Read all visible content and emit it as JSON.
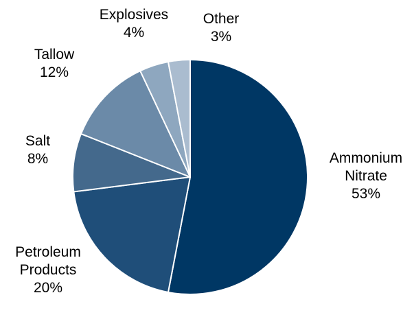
{
  "chart_data": {
    "type": "pie",
    "title": "",
    "start_angle_deg": 0,
    "direction": "clockwise",
    "slices": [
      {
        "name": "Ammonium Nitrate",
        "label_lines": [
          "Ammonium",
          "Nitrate"
        ],
        "value": 53,
        "value_label": "53%",
        "color": "#003764"
      },
      {
        "name": "Petroleum Products",
        "label_lines": [
          "Petroleum",
          "Products"
        ],
        "value": 20,
        "value_label": "20%",
        "color": "#1f4e79"
      },
      {
        "name": "Salt",
        "label_lines": [
          "Salt"
        ],
        "value": 8,
        "value_label": "8%",
        "color": "#44698c"
      },
      {
        "name": "Tallow",
        "label_lines": [
          "Tallow"
        ],
        "value": 12,
        "value_label": "12%",
        "color": "#6b8aa8"
      },
      {
        "name": "Explosives",
        "label_lines": [
          "Explosives"
        ],
        "value": 4,
        "value_label": "4%",
        "color": "#8ea7bf"
      },
      {
        "name": "Other",
        "label_lines": [
          "Other"
        ],
        "value": 3,
        "value_label": "3%",
        "color": "#aabccf"
      }
    ],
    "legend": "none"
  }
}
